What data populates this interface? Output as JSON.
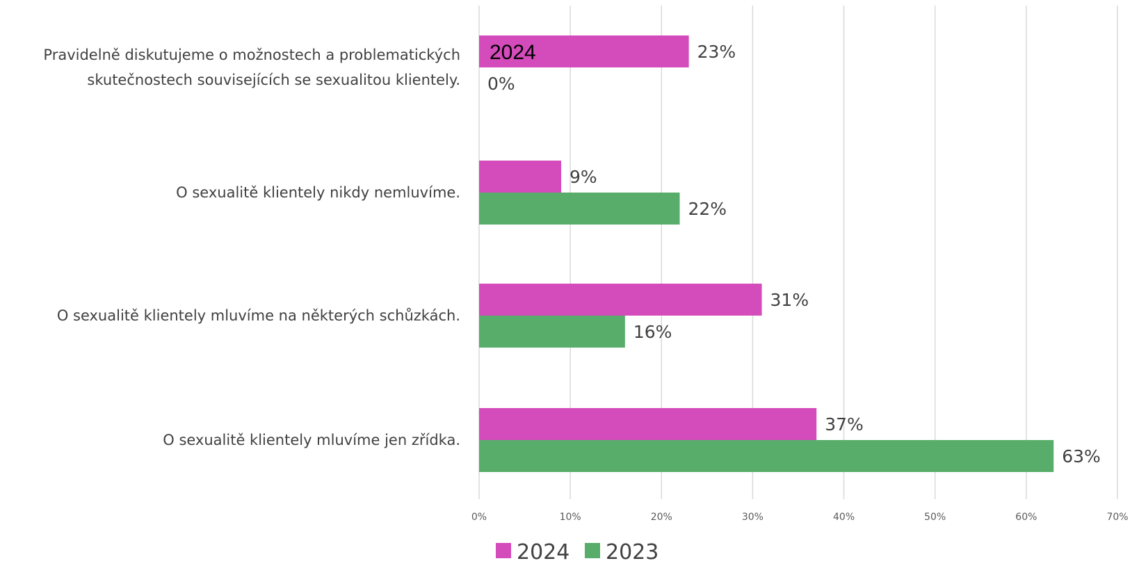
{
  "chart_data": {
    "type": "bar",
    "orientation": "horizontal",
    "categories": [
      "Pravidelně diskutujeme o možnostech a problematických skutečnostech souvisejících se sexualitou klientely.",
      "O sexualitě klientely nikdy nemluvíme.",
      "O sexualitě klientely mluvíme na některých schůzkách.",
      "O sexualitě klientely mluvíme jen zřídka."
    ],
    "category_lines": [
      [
        "Pravidelně diskutujeme o možnostech a problematických",
        "skutečnostech souvisejících se sexualitou klientely."
      ],
      [
        "O sexualitě klientely nikdy nemluvíme."
      ],
      [
        "O sexualitě klientely mluvíme na některých schůzkách."
      ],
      [
        "O sexualitě klientely mluvíme jen zřídka."
      ]
    ],
    "series": [
      {
        "name": "2024",
        "color": "#d44bbb",
        "values": [
          23,
          9,
          31,
          37
        ],
        "labels": [
          "23%",
          "9%",
          "31%",
          "37%"
        ]
      },
      {
        "name": "2023",
        "color": "#58ad6a",
        "values": [
          0,
          22,
          16,
          63
        ],
        "labels": [
          "0%",
          "22%",
          "16%",
          "63%"
        ]
      }
    ],
    "xlim": [
      0,
      70
    ],
    "x_ticks": [
      "0%",
      "10%",
      "20%",
      "30%",
      "40%",
      "50%",
      "60%",
      "70%"
    ],
    "grid": "vertical",
    "gridline_color": "#d9d9d9",
    "legend_position": "bottom",
    "overlay_text": "2024",
    "title": "",
    "xlabel": "",
    "ylabel": ""
  }
}
